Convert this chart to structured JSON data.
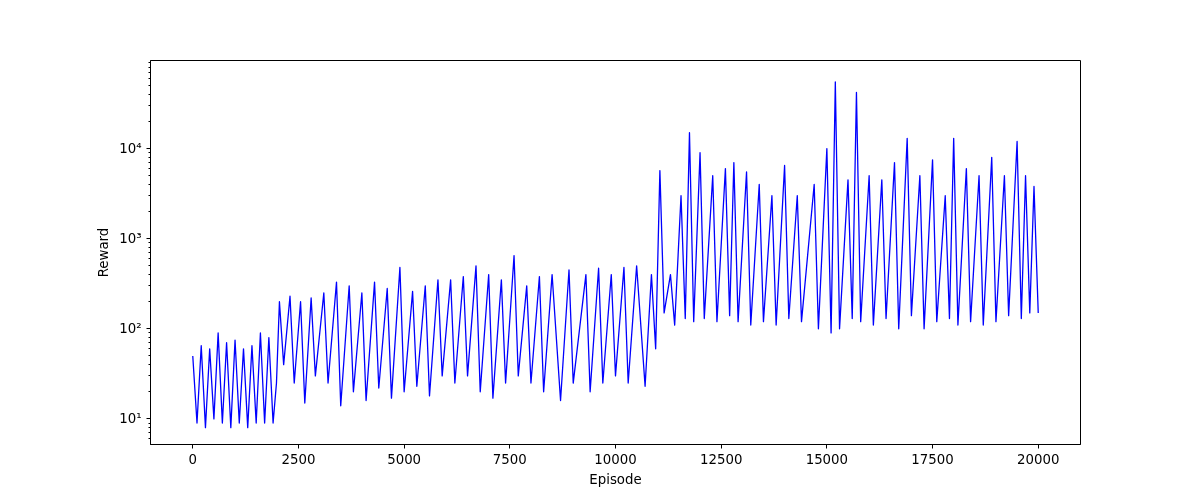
{
  "chart_data": {
    "type": "line",
    "xlabel": "Episode",
    "ylabel": "Reward",
    "log": "y",
    "grid": false,
    "line_style": "solid",
    "marker": "none",
    "xlim": [
      -1000,
      21000
    ],
    "xticks": [
      0,
      2500,
      5000,
      7500,
      10000,
      12500,
      15000,
      17500,
      20000
    ],
    "ylim": [
      5.2,
      95000
    ],
    "yticks": [
      {
        "value": 10,
        "label": "10¹"
      },
      {
        "value": 100,
        "label": "10²"
      },
      {
        "value": 1000,
        "label": "10³"
      },
      {
        "value": 10000,
        "label": "10⁴"
      }
    ],
    "series": [
      {
        "color": "#0000ff",
        "x": [
          0,
          100,
          200,
          300,
          400,
          500,
          600,
          700,
          800,
          900,
          1000,
          1100,
          1200,
          1300,
          1400,
          1500,
          1600,
          1700,
          1800,
          1900,
          1980,
          2050,
          2150,
          2300,
          2400,
          2550,
          2650,
          2800,
          2900,
          3100,
          3200,
          3400,
          3500,
          3700,
          3800,
          4000,
          4100,
          4300,
          4400,
          4600,
          4700,
          4900,
          5000,
          5200,
          5300,
          5500,
          5600,
          5800,
          5900,
          6100,
          6200,
          6400,
          6500,
          6700,
          6800,
          7000,
          7100,
          7300,
          7400,
          7600,
          7700,
          7900,
          8000,
          8200,
          8300,
          8500,
          8700,
          8900,
          9000,
          9300,
          9400,
          9600,
          9700,
          9900,
          10000,
          10200,
          10300,
          10500,
          10700,
          10850,
          10950,
          11050,
          11150,
          11300,
          11400,
          11550,
          11650,
          11750,
          11850,
          12000,
          12100,
          12300,
          12400,
          12600,
          12700,
          12800,
          12900,
          13100,
          13200,
          13400,
          13500,
          13700,
          13800,
          14000,
          14100,
          14300,
          14400,
          14700,
          14800,
          15000,
          15100,
          15200,
          15300,
          15500,
          15600,
          15700,
          15800,
          16000,
          16100,
          16300,
          16400,
          16600,
          16700,
          16900,
          17000,
          17200,
          17300,
          17500,
          17600,
          17800,
          17900,
          18000,
          18100,
          18300,
          18400,
          18600,
          18700,
          18900,
          19000,
          19200,
          19300,
          19500,
          19600,
          19700,
          19800,
          19900,
          20000
        ],
        "values": [
          50,
          9,
          65,
          8,
          60,
          10,
          90,
          9,
          70,
          8,
          75,
          9,
          60,
          8,
          65,
          9,
          90,
          9,
          80,
          9,
          25,
          200,
          40,
          230,
          25,
          200,
          15,
          220,
          30,
          250,
          25,
          330,
          14,
          300,
          20,
          250,
          16,
          330,
          22,
          280,
          17,
          480,
          20,
          260,
          23,
          300,
          18,
          350,
          30,
          350,
          25,
          380,
          30,
          500,
          20,
          400,
          17,
          350,
          25,
          650,
          30,
          300,
          25,
          380,
          20,
          400,
          16,
          450,
          25,
          400,
          20,
          470,
          25,
          400,
          30,
          480,
          25,
          500,
          23,
          400,
          60,
          5700,
          150,
          400,
          110,
          3000,
          130,
          15000,
          120,
          9000,
          130,
          5000,
          120,
          6000,
          140,
          7000,
          120,
          5500,
          110,
          4000,
          120,
          3000,
          110,
          6500,
          130,
          3000,
          120,
          4000,
          100,
          10000,
          90,
          55000,
          100,
          4500,
          130,
          42000,
          120,
          5000,
          110,
          4500,
          130,
          7000,
          100,
          13000,
          140,
          5000,
          100,
          7500,
          120,
          3000,
          130,
          13000,
          110,
          6000,
          120,
          5000,
          110,
          8000,
          120,
          5000,
          140,
          12000,
          130,
          5000,
          150,
          3800,
          150
        ]
      }
    ]
  }
}
